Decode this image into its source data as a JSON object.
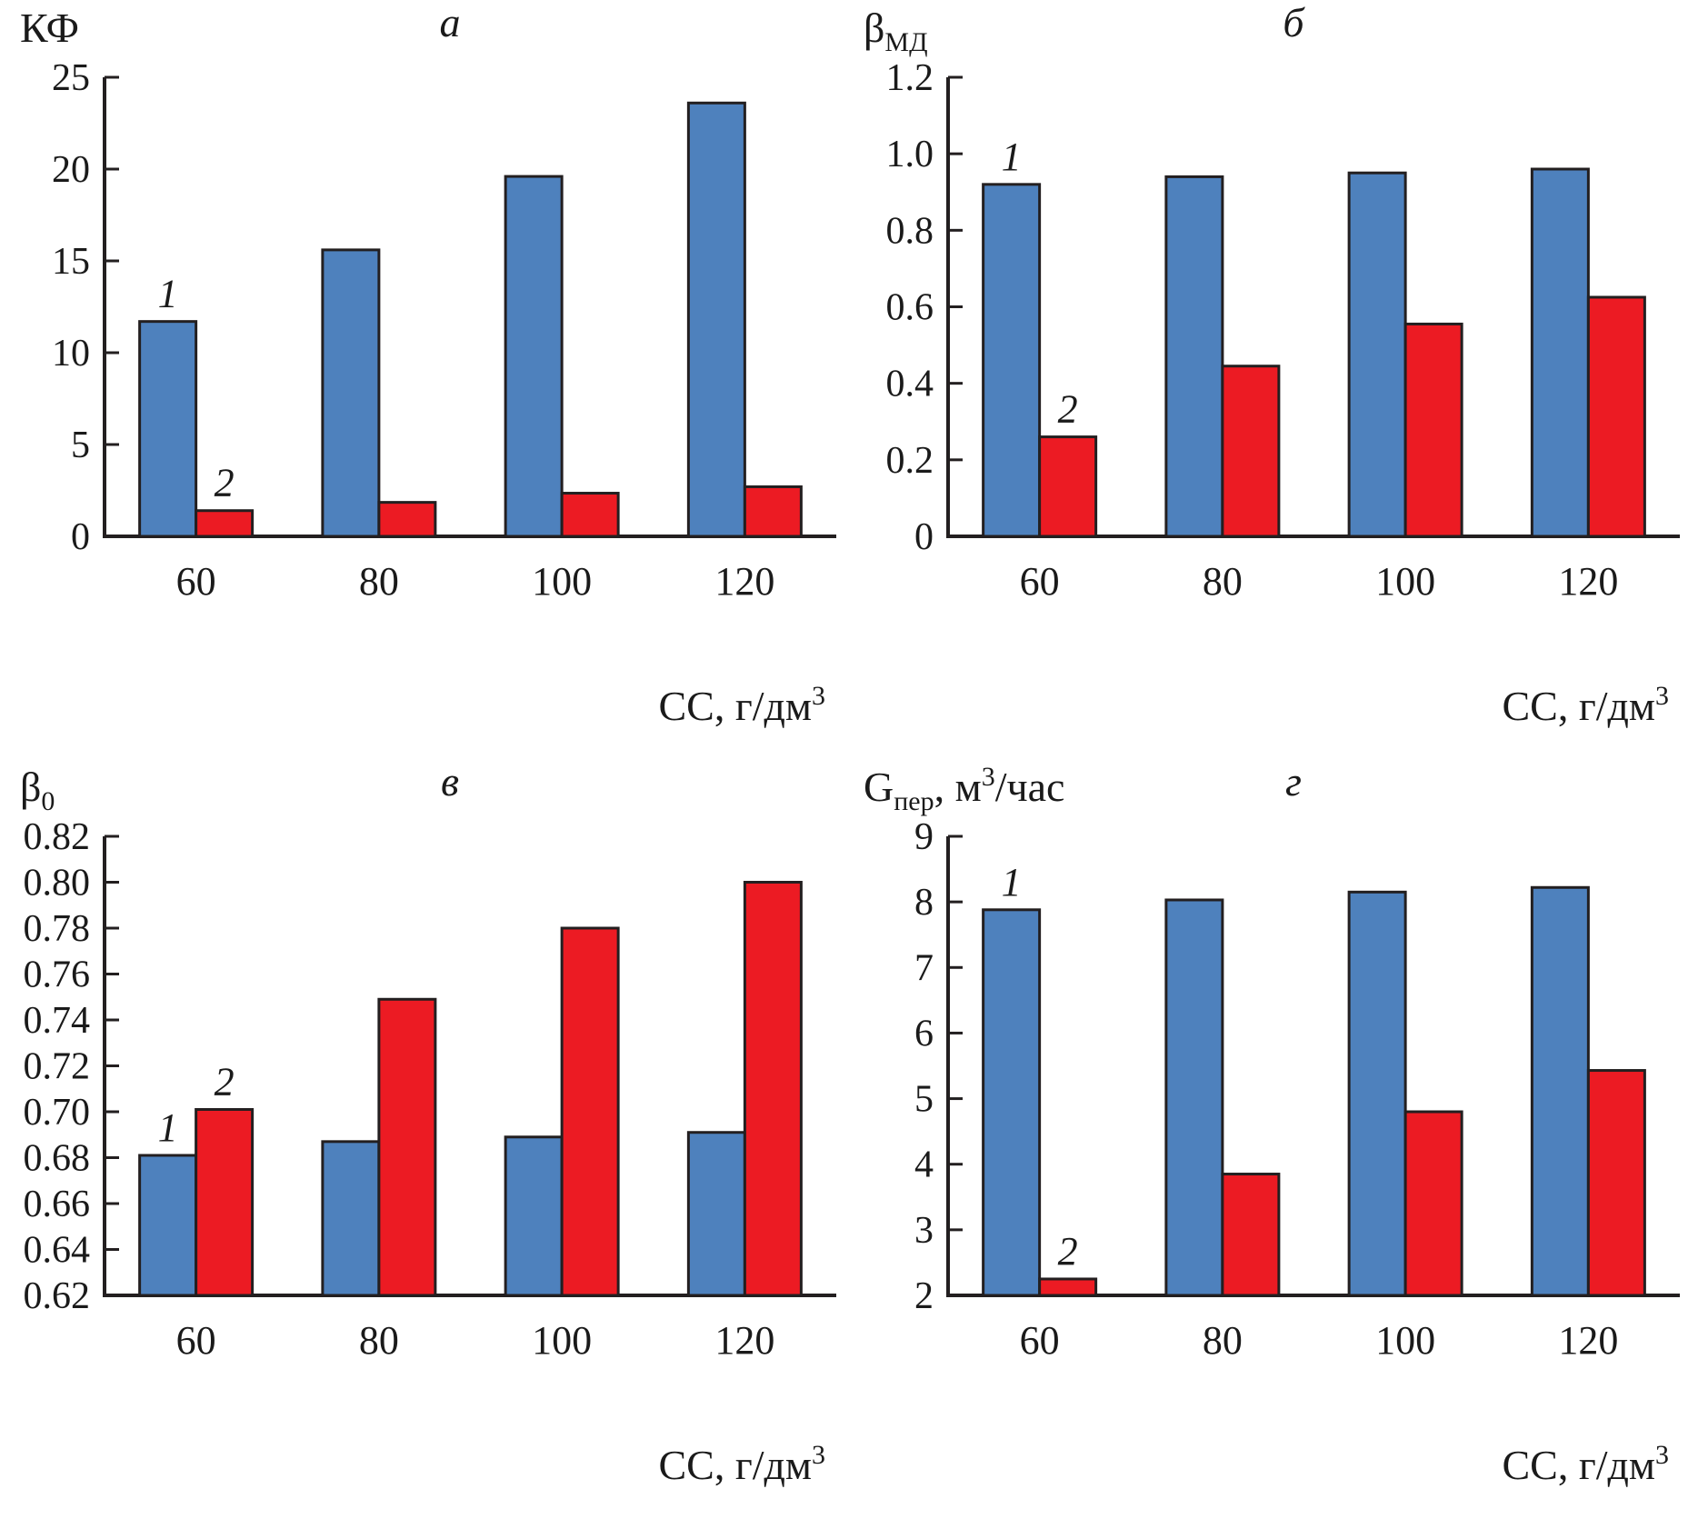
{
  "colors": {
    "series1": "#4E81BD",
    "series2": "#EC1B23",
    "bar_border": "#231F20",
    "axis": "#231F20",
    "text": "#1A1A1A",
    "background": "#FFFFFF"
  },
  "chart_data": [
    {
      "type": "bar",
      "panel_id": "a",
      "title": "а",
      "ylabel_parts": [
        {
          "t": "КФ"
        }
      ],
      "ylabel_plain": "КФ",
      "xlabel_parts": [
        {
          "t": "СС, г/дм"
        },
        {
          "t": "3",
          "pos": "sup"
        }
      ],
      "xlabel_plain": "СС, г/дм3",
      "ylim": [
        0,
        25
      ],
      "yticks": [
        "0",
        "5",
        "10",
        "15",
        "20",
        "25"
      ],
      "categories": [
        "60",
        "80",
        "100",
        "120"
      ],
      "grid": false,
      "legend_position": "none",
      "series": [
        {
          "name": "1",
          "color": "series1",
          "values": [
            11.7,
            15.6,
            19.6,
            23.6
          ]
        },
        {
          "name": "2",
          "color": "series2",
          "values": [
            1.4,
            1.85,
            2.35,
            2.7
          ]
        }
      ]
    },
    {
      "type": "bar",
      "panel_id": "b",
      "title": "б",
      "ylabel_parts": [
        {
          "t": "β"
        },
        {
          "t": "МД",
          "pos": "sub"
        }
      ],
      "ylabel_plain": "βМД",
      "xlabel_parts": [
        {
          "t": "СС, г/дм"
        },
        {
          "t": "3",
          "pos": "sup"
        }
      ],
      "xlabel_plain": "СС, г/дм3",
      "ylim": [
        0,
        1.2
      ],
      "yticks": [
        "0",
        "0.2",
        "0.4",
        "0.6",
        "0.8",
        "1.0",
        "1.2"
      ],
      "categories": [
        "60",
        "80",
        "100",
        "120"
      ],
      "grid": false,
      "legend_position": "none",
      "series": [
        {
          "name": "1",
          "color": "series1",
          "values": [
            0.92,
            0.94,
            0.95,
            0.96
          ]
        },
        {
          "name": "2",
          "color": "series2",
          "values": [
            0.26,
            0.445,
            0.555,
            0.625
          ]
        }
      ]
    },
    {
      "type": "bar",
      "panel_id": "v",
      "title": "в",
      "ylabel_parts": [
        {
          "t": "β"
        },
        {
          "t": "0",
          "pos": "sub"
        }
      ],
      "ylabel_plain": "β0",
      "xlabel_parts": [
        {
          "t": "СС, г/дм"
        },
        {
          "t": "3",
          "pos": "sup"
        }
      ],
      "xlabel_plain": "СС, г/дм3",
      "ylim": [
        0.62,
        0.82
      ],
      "yticks": [
        "0.62",
        "0.64",
        "0.66",
        "0.68",
        "0.70",
        "0.72",
        "0.74",
        "0.76",
        "0.78",
        "0.80",
        "0.82"
      ],
      "categories": [
        "60",
        "80",
        "100",
        "120"
      ],
      "grid": false,
      "legend_position": "none",
      "series": [
        {
          "name": "1",
          "color": "series1",
          "values": [
            0.681,
            0.687,
            0.689,
            0.691
          ]
        },
        {
          "name": "2",
          "color": "series2",
          "values": [
            0.701,
            0.749,
            0.78,
            0.8
          ]
        }
      ]
    },
    {
      "type": "bar",
      "panel_id": "g",
      "title": "г",
      "ylabel_parts": [
        {
          "t": "G"
        },
        {
          "t": "пер",
          "pos": "sub"
        },
        {
          "t": ", м"
        },
        {
          "t": "3",
          "pos": "sup"
        },
        {
          "t": "/час"
        }
      ],
      "ylabel_plain": "Gпер, м3/час",
      "xlabel_parts": [
        {
          "t": "СС, г/дм"
        },
        {
          "t": "3",
          "pos": "sup"
        }
      ],
      "xlabel_plain": "СС, г/дм3",
      "ylim": [
        2,
        9
      ],
      "yticks": [
        "2",
        "3",
        "4",
        "5",
        "6",
        "7",
        "8",
        "9"
      ],
      "categories": [
        "60",
        "80",
        "100",
        "120"
      ],
      "grid": false,
      "legend_position": "none",
      "series": [
        {
          "name": "1",
          "color": "series1",
          "values": [
            7.88,
            8.03,
            8.15,
            8.22
          ]
        },
        {
          "name": "2",
          "color": "series2",
          "values": [
            2.25,
            3.85,
            4.8,
            5.43
          ]
        }
      ]
    }
  ]
}
